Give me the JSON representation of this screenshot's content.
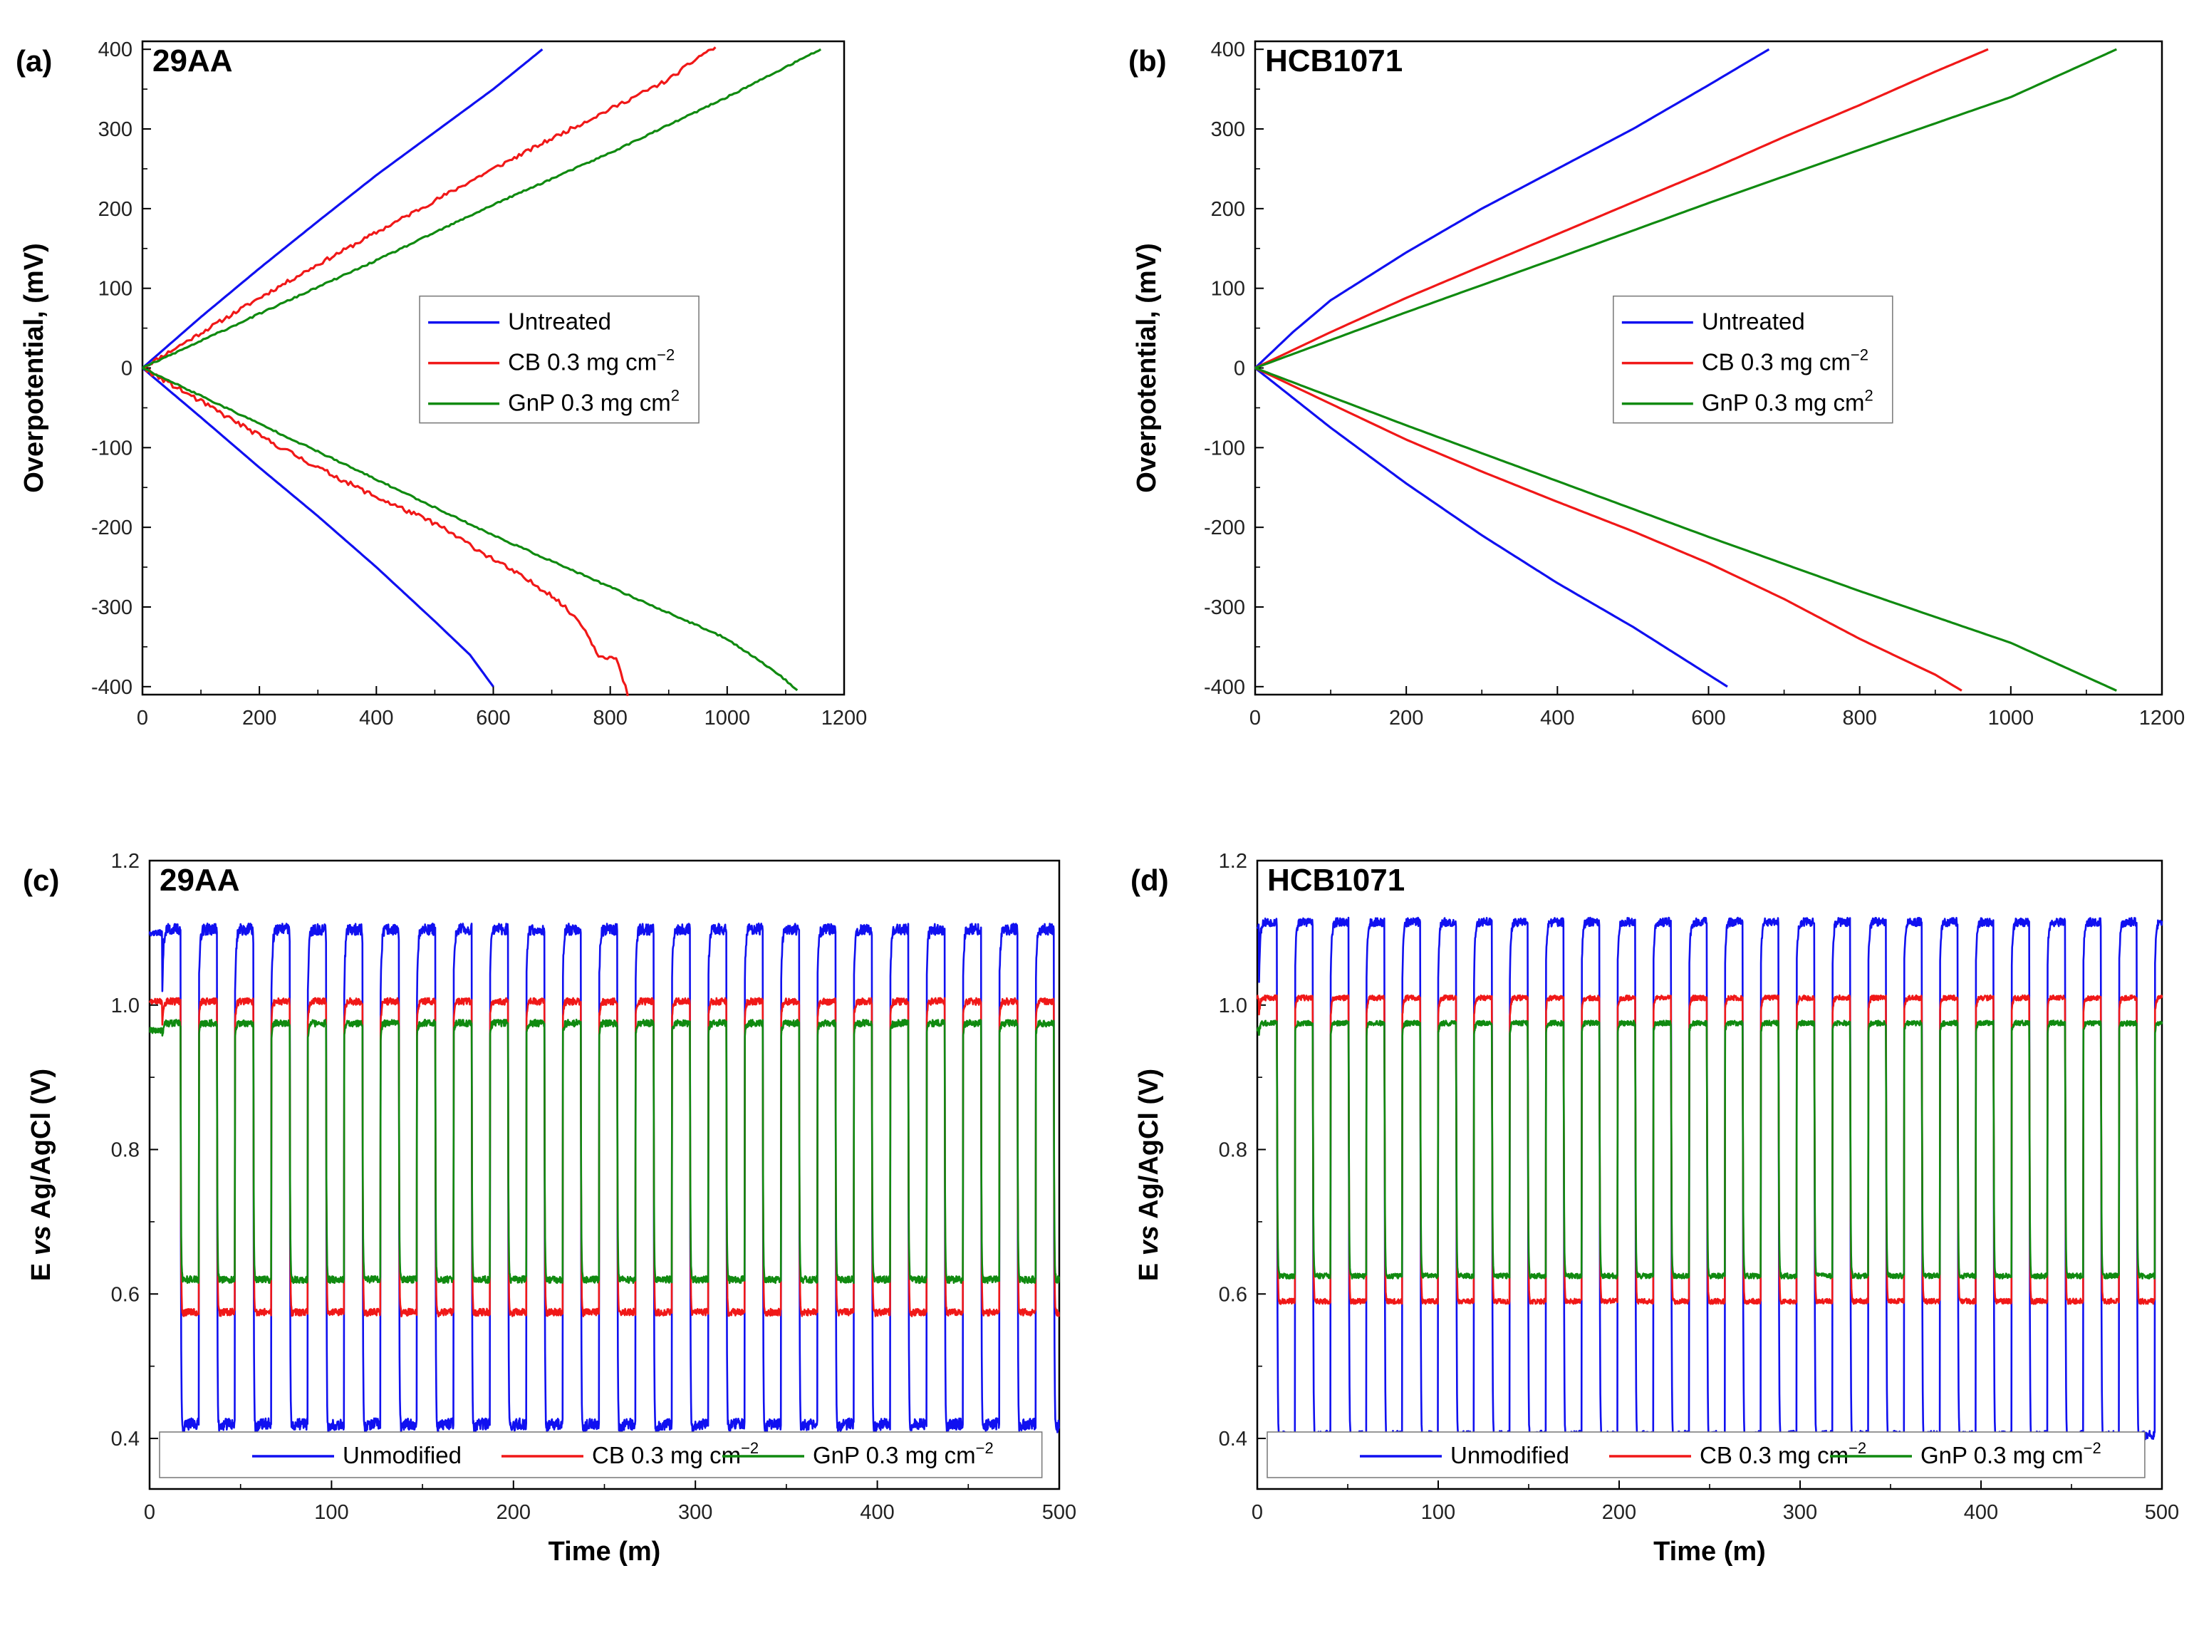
{
  "figure": {
    "colors": {
      "blue": "#1010f0",
      "red": "#f01818",
      "green": "#108a10"
    }
  },
  "chart_data": [
    {
      "id": "a",
      "type": "line",
      "panel_label": "(a)",
      "sample": "29AA",
      "xlabel": "",
      "ylabel": "Overpotential,  (mV)",
      "xlim": [
        0,
        1200
      ],
      "ylim": [
        -410,
        410
      ],
      "xticks": [
        0,
        200,
        400,
        600,
        800,
        1000,
        1200
      ],
      "yticks": [
        -400,
        -300,
        -200,
        -100,
        0,
        100,
        200,
        300,
        400
      ],
      "legend": {
        "position": "center-right",
        "entries": [
          {
            "label": "Untreated",
            "unit": "",
            "sup": "",
            "color": "#1010f0"
          },
          {
            "label": "CB 0.3 mg cm",
            "unit": "",
            "sup": "−2",
            "color": "#f01818"
          },
          {
            "label": "GnP 0.3 mg cm",
            "unit": "",
            "sup": "2",
            "color": "#108a10"
          }
        ]
      },
      "series": [
        {
          "name": "Untreated anodic",
          "color": "#1010f0",
          "noise": 0,
          "points": [
            [
              0,
              0
            ],
            [
              100,
              64
            ],
            [
              200,
              125
            ],
            [
              300,
              184
            ],
            [
              400,
              242
            ],
            [
              500,
              296
            ],
            [
              600,
              350
            ],
            [
              684,
              400
            ]
          ]
        },
        {
          "name": "Untreated cathodic",
          "color": "#1010f0",
          "noise": 0,
          "points": [
            [
              0,
              0
            ],
            [
              100,
              -62
            ],
            [
              200,
              -125
            ],
            [
              300,
              -186
            ],
            [
              400,
              -250
            ],
            [
              500,
              -318
            ],
            [
              560,
              -360
            ],
            [
              600,
              -400
            ]
          ]
        },
        {
          "name": "CB anodic",
          "color": "#f01818",
          "noise": 2.5,
          "points": [
            [
              0,
              0
            ],
            [
              100,
              44
            ],
            [
              200,
              88
            ],
            [
              300,
              130
            ],
            [
              400,
              170
            ],
            [
              500,
              210
            ],
            [
              600,
              250
            ],
            [
              700,
              288
            ],
            [
              800,
              325
            ],
            [
              900,
              362
            ],
            [
              960,
              395
            ],
            [
              980,
              402
            ]
          ]
        },
        {
          "name": "CB cathodic",
          "color": "#f01818",
          "noise": 3,
          "points": [
            [
              0,
              0
            ],
            [
              100,
              -42
            ],
            [
              200,
              -85
            ],
            [
              300,
              -125
            ],
            [
              400,
              -162
            ],
            [
              500,
              -195
            ],
            [
              600,
              -240
            ],
            [
              700,
              -285
            ],
            [
              750,
              -320
            ],
            [
              780,
              -360
            ],
            [
              810,
              -365
            ],
            [
              830,
              -410
            ]
          ]
        },
        {
          "name": "GnP anodic",
          "color": "#108a10",
          "noise": 1,
          "points": [
            [
              0,
              0
            ],
            [
              200,
              68
            ],
            [
              400,
              135
            ],
            [
              600,
              205
            ],
            [
              800,
              270
            ],
            [
              1000,
              340
            ],
            [
              1160,
              400
            ]
          ]
        },
        {
          "name": "GnP cathodic",
          "color": "#108a10",
          "noise": 1,
          "points": [
            [
              0,
              0
            ],
            [
              200,
              -70
            ],
            [
              400,
              -140
            ],
            [
              600,
              -210
            ],
            [
              800,
              -275
            ],
            [
              1000,
              -340
            ],
            [
              1080,
              -380
            ],
            [
              1120,
              -404
            ]
          ]
        }
      ]
    },
    {
      "id": "b",
      "type": "line",
      "panel_label": "(b)",
      "sample": "HCB1071",
      "xlabel": "",
      "ylabel": "Overpotential,  (mV)",
      "xlim": [
        0,
        1200
      ],
      "ylim": [
        -410,
        410
      ],
      "xticks": [
        0,
        200,
        400,
        600,
        800,
        1000,
        1200
      ],
      "yticks": [
        -400,
        -300,
        -200,
        -100,
        0,
        100,
        200,
        300,
        400
      ],
      "legend": {
        "position": "center-right",
        "entries": [
          {
            "label": "Untreated",
            "unit": "",
            "sup": "",
            "color": "#1010f0"
          },
          {
            "label": "CB 0.3 mg cm",
            "unit": "",
            "sup": "−2",
            "color": "#f01818"
          },
          {
            "label": "GnP 0.3 mg cm",
            "unit": "",
            "sup": "2",
            "color": "#108a10"
          }
        ]
      },
      "series": [
        {
          "name": "Untreated anodic",
          "color": "#1010f0",
          "noise": 0,
          "points": [
            [
              0,
              0
            ],
            [
              50,
              45
            ],
            [
              100,
              85
            ],
            [
              200,
              145
            ],
            [
              300,
              200
            ],
            [
              400,
              250
            ],
            [
              500,
              300
            ],
            [
              600,
              355
            ],
            [
              680,
              400
            ]
          ]
        },
        {
          "name": "Untreated cathodic",
          "color": "#1010f0",
          "noise": 0,
          "points": [
            [
              0,
              0
            ],
            [
              100,
              -75
            ],
            [
              200,
              -145
            ],
            [
              300,
              -210
            ],
            [
              400,
              -270
            ],
            [
              500,
              -325
            ],
            [
              600,
              -385
            ],
            [
              625,
              -400
            ]
          ]
        },
        {
          "name": "CB anodic",
          "color": "#f01818",
          "noise": 0,
          "points": [
            [
              0,
              0
            ],
            [
              100,
              45
            ],
            [
              200,
              88
            ],
            [
              300,
              128
            ],
            [
              400,
              168
            ],
            [
              500,
              208
            ],
            [
              600,
              248
            ],
            [
              700,
              290
            ],
            [
              800,
              330
            ],
            [
              900,
              372
            ],
            [
              970,
              400
            ]
          ]
        },
        {
          "name": "CB cathodic",
          "color": "#f01818",
          "noise": 0,
          "points": [
            [
              0,
              0
            ],
            [
              100,
              -45
            ],
            [
              200,
              -90
            ],
            [
              300,
              -130
            ],
            [
              400,
              -168
            ],
            [
              500,
              -205
            ],
            [
              600,
              -245
            ],
            [
              700,
              -290
            ],
            [
              800,
              -340
            ],
            [
              900,
              -385
            ],
            [
              935,
              -405
            ]
          ]
        },
        {
          "name": "GnP anodic",
          "color": "#108a10",
          "noise": 0,
          "points": [
            [
              0,
              0
            ],
            [
              200,
              70
            ],
            [
              400,
              138
            ],
            [
              600,
              207
            ],
            [
              800,
              274
            ],
            [
              1000,
              340
            ],
            [
              1140,
              400
            ]
          ]
        },
        {
          "name": "GnP cathodic",
          "color": "#108a10",
          "noise": 0,
          "points": [
            [
              0,
              0
            ],
            [
              200,
              -72
            ],
            [
              400,
              -142
            ],
            [
              600,
              -212
            ],
            [
              800,
              -280
            ],
            [
              1000,
              -345
            ],
            [
              1140,
              -405
            ]
          ]
        }
      ]
    },
    {
      "id": "c",
      "type": "line",
      "panel_label": "(c)",
      "sample": "29AA",
      "xlabel": "Time (m)",
      "ylabel_main": "E ",
      "ylabel_italic": "vs",
      "ylabel_rest": " Ag/AgCl (V)",
      "xlim": [
        0,
        500
      ],
      "ylim": [
        0.33,
        1.2
      ],
      "xticks": [
        0,
        100,
        200,
        300,
        400,
        500
      ],
      "yticks": [
        0.4,
        0.6,
        0.8,
        1.0,
        1.2
      ],
      "legend": {
        "position": "bottom",
        "entries": [
          {
            "label": "Unmodified",
            "unit": "",
            "sup": "",
            "color": "#1010f0"
          },
          {
            "label": "CB 0.3 mg cm",
            "unit": "",
            "sup": "−2",
            "color": "#f01818"
          },
          {
            "label": "GnP 0.3 mg cm",
            "unit": "",
            "sup": "−2",
            "color": "#108a10"
          }
        ]
      },
      "cycles": {
        "count": 25,
        "period": 20,
        "duty": 0.5,
        "start": 7,
        "noise": 0.008
      },
      "series": [
        {
          "name": "Unmodified",
          "color": "#1010f0",
          "high": 1.105,
          "low": 0.42,
          "high_rise": 0.09,
          "low_dip": 0.18
        },
        {
          "name": "CB 0.3 mg cm−2",
          "color": "#f01818",
          "high": 1.005,
          "low": 0.575,
          "high_rise": 0.03,
          "low_dip": 0.06
        },
        {
          "name": "GnP 0.3 mg cm−2",
          "color": "#108a10",
          "high": 0.975,
          "low": 0.62,
          "high_rise": 0.02,
          "low_dip": 0.01
        }
      ]
    },
    {
      "id": "d",
      "type": "line",
      "panel_label": "(d)",
      "sample": "HCB1071",
      "xlabel": "Time (m)",
      "ylabel_main": "E ",
      "ylabel_italic": "vs",
      "ylabel_rest": " Ag/AgCl (V)",
      "xlim": [
        0,
        500
      ],
      "ylim": [
        0.33,
        1.2
      ],
      "xticks": [
        0,
        100,
        200,
        300,
        400,
        500
      ],
      "yticks": [
        0.4,
        0.6,
        0.8,
        1.0,
        1.2
      ],
      "legend": {
        "position": "bottom",
        "entries": [
          {
            "label": "Unmodified",
            "unit": "",
            "sup": "",
            "color": "#1010f0"
          },
          {
            "label": "CB 0.3 mg cm",
            "unit": "",
            "sup": "−2",
            "color": "#f01818"
          },
          {
            "label": "GnP 0.3 mg cm",
            "unit": "",
            "sup": "−2",
            "color": "#108a10"
          }
        ]
      },
      "cycles": {
        "count": 25,
        "period": 19.8,
        "duty": 0.5,
        "start": 1,
        "noise": 0.006
      },
      "series": [
        {
          "name": "Unmodified",
          "color": "#1010f0",
          "high": 1.115,
          "low": 0.405,
          "high_rise": 0.08,
          "low_dip": 0.15
        },
        {
          "name": "CB 0.3 mg cm−2",
          "color": "#f01818",
          "high": 1.01,
          "low": 0.59,
          "high_rise": 0.025,
          "low_dip": 0.02
        },
        {
          "name": "GnP 0.3 mg cm−2",
          "color": "#108a10",
          "high": 0.975,
          "low": 0.625,
          "high_rise": 0.015,
          "low_dip": 0.005
        }
      ]
    }
  ]
}
